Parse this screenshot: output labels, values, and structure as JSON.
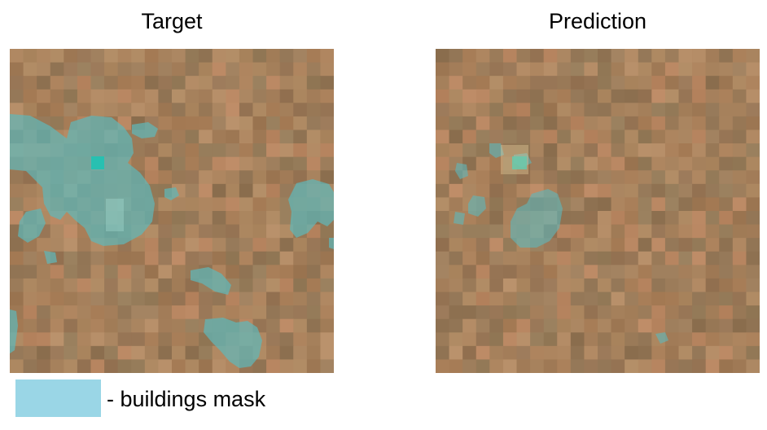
{
  "panels": [
    {
      "title": "Target"
    },
    {
      "title": "Prediction"
    }
  ],
  "legend": {
    "swatch_color": "#9ad6e6",
    "label": "- buildings mask"
  },
  "colors": {
    "soil": "#a7825d",
    "mask": "#5fb7b9",
    "mask_highlight": "#1fc2b2"
  }
}
